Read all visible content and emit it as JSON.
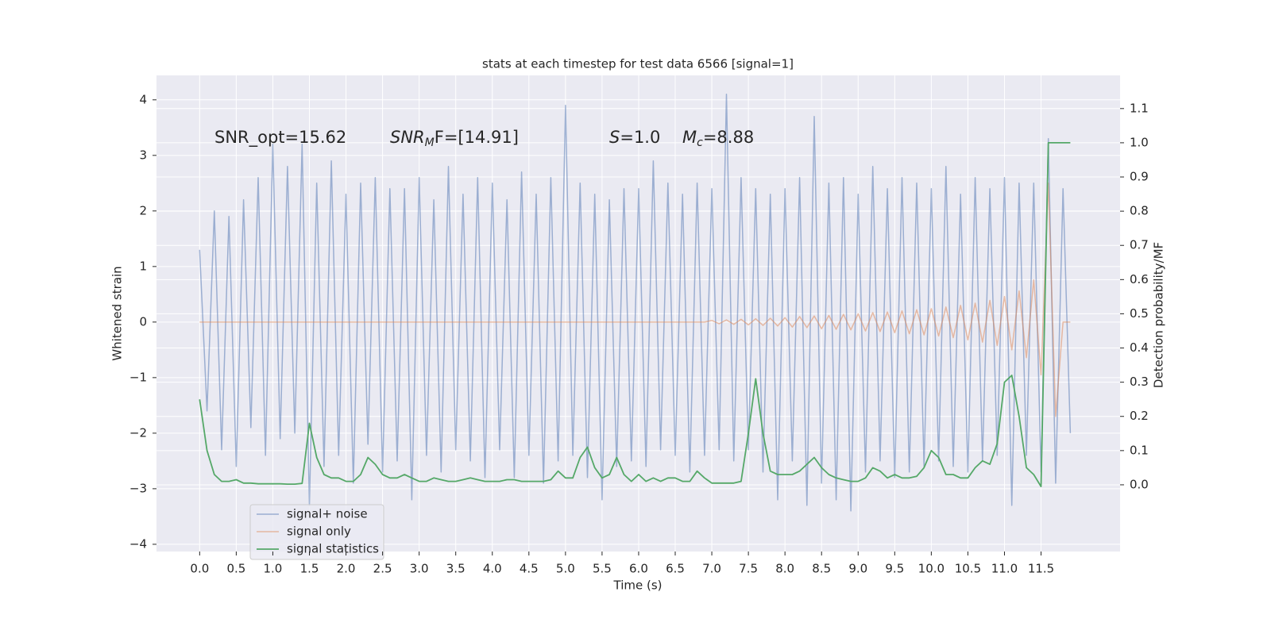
{
  "chart_data": {
    "type": "line",
    "title": "stats at each timestep for test data 6566 [signal=1]",
    "xlabel": "Time (s)",
    "ylabel": "Whitened strain",
    "y2label": "Detection probability/MF",
    "annotations": [
      {
        "text": "SNR_opt=15.62"
      },
      {
        "symbol": "SNR",
        "subscript": "M",
        "text": "F=[14.91]"
      },
      {
        "symbol": "S",
        "text": "=1.0"
      },
      {
        "symbol": "M",
        "subscript": "c",
        "text": "=8.88"
      }
    ],
    "xlim": [
      -0.59,
      12.58
    ],
    "ylim": [
      -4.13,
      4.44
    ],
    "y2lim": [
      -0.195,
      1.197
    ],
    "xticks": [
      {
        "value": 0,
        "label": "0.0"
      },
      0.5,
      {
        "value": 1,
        "label": "1.0"
      },
      1.5,
      {
        "value": 2,
        "label": "2.0"
      },
      2.5,
      {
        "value": 3,
        "label": "3.0"
      },
      3.5,
      {
        "value": 4,
        "label": "4.0"
      },
      4.5,
      {
        "value": 5,
        "label": "5.0"
      },
      5.5,
      {
        "value": 6,
        "label": "6.0"
      },
      6.5,
      {
        "value": 7,
        "label": "7.0"
      },
      7.5,
      {
        "value": 8,
        "label": "8.0"
      },
      8.5,
      {
        "value": 9,
        "label": "9.0"
      },
      9.5,
      {
        "value": 10,
        "label": "10.0"
      },
      10.5,
      {
        "value": 11,
        "label": "11.0"
      },
      11.5
    ],
    "yticks": [
      {
        "value": -4,
        "label": "−4"
      },
      {
        "value": -3,
        "label": "−3"
      },
      {
        "value": -2,
        "label": "−2"
      },
      {
        "value": -1,
        "label": "−1"
      },
      0,
      1,
      2,
      3,
      4
    ],
    "y2ticks": [
      {
        "value": 0,
        "label": "0.0"
      },
      0.1,
      0.2,
      0.3,
      0.4,
      0.5,
      0.6,
      0.7,
      0.8,
      0.9,
      {
        "value": 1,
        "label": "1.0"
      },
      1.1
    ],
    "grid": true,
    "legend": "lower left",
    "x": [
      0.0,
      0.1,
      0.2,
      0.3,
      0.4,
      0.5,
      0.6,
      0.7,
      0.8,
      0.9,
      1.0,
      1.1,
      1.2,
      1.3,
      1.4,
      1.5,
      1.6,
      1.7,
      1.8,
      1.9,
      2.0,
      2.1,
      2.2,
      2.3,
      2.4,
      2.5,
      2.6,
      2.7,
      2.8,
      2.9,
      3.0,
      3.1,
      3.2,
      3.3,
      3.4,
      3.5,
      3.6,
      3.7,
      3.8,
      3.9,
      4.0,
      4.1,
      4.2,
      4.3,
      4.4,
      4.5,
      4.6,
      4.7,
      4.8,
      4.9,
      5.0,
      5.1,
      5.2,
      5.3,
      5.4,
      5.5,
      5.6,
      5.7,
      5.8,
      5.9,
      6.0,
      6.1,
      6.2,
      6.3,
      6.4,
      6.5,
      6.6,
      6.7,
      6.8,
      6.9,
      7.0,
      7.1,
      7.2,
      7.3,
      7.4,
      7.5,
      7.6,
      7.7,
      7.8,
      7.9,
      8.0,
      8.1,
      8.2,
      8.3,
      8.4,
      8.5,
      8.6,
      8.7,
      8.8,
      8.9,
      9.0,
      9.1,
      9.2,
      9.3,
      9.4,
      9.5,
      9.6,
      9.7,
      9.8,
      9.9,
      10.0,
      10.1,
      10.2,
      10.3,
      10.4,
      10.5,
      10.6,
      10.7,
      10.8,
      10.9,
      11.0,
      11.1,
      11.2,
      11.3,
      11.4,
      11.5,
      11.6,
      11.7,
      11.8,
      11.9
    ],
    "series": [
      {
        "name": "signal+ noise",
        "color": "#4c72b0",
        "values": [
          1.3,
          -1.6,
          2.0,
          -2.3,
          1.9,
          -2.6,
          2.2,
          -1.9,
          2.6,
          -2.4,
          3.2,
          -2.1,
          2.8,
          -2.0,
          3.2,
          -3.3,
          2.5,
          -2.6,
          2.9,
          -2.4,
          2.3,
          -2.9,
          2.5,
          -2.2,
          2.6,
          -2.7,
          2.4,
          -2.5,
          2.4,
          -3.2,
          2.6,
          -2.4,
          2.2,
          -2.7,
          2.8,
          -2.3,
          2.3,
          -2.5,
          2.6,
          -2.8,
          2.5,
          -2.3,
          2.2,
          -2.8,
          2.7,
          -2.4,
          2.3,
          -2.9,
          2.6,
          -2.5,
          3.9,
          -2.4,
          2.5,
          -2.8,
          2.3,
          -3.2,
          2.2,
          -2.6,
          2.4,
          -2.5,
          2.4,
          -2.6,
          2.9,
          -2.3,
          2.5,
          -2.4,
          2.3,
          -2.7,
          2.5,
          -2.4,
          2.4,
          -2.3,
          4.1,
          -2.5,
          2.6,
          -2.3,
          2.4,
          -2.7,
          2.3,
          -3.2,
          2.4,
          -2.5,
          2.6,
          -3.3,
          3.7,
          -2.9,
          2.5,
          -3.2,
          2.6,
          -3.4,
          2.3,
          -2.7,
          2.8,
          -2.5,
          2.4,
          -2.8,
          2.6,
          -2.7,
          2.5,
          -2.6,
          2.4,
          -2.5,
          2.8,
          -2.6,
          2.3,
          -2.7,
          2.6,
          -2.5,
          2.4,
          -2.4,
          2.6,
          -3.3,
          2.5,
          -2.4,
          2.5,
          -2.7,
          3.3,
          -2.9,
          2.4,
          -2.0
        ]
      },
      {
        "name": "signal only",
        "color": "#dd8452",
        "values": [
          0,
          0,
          0,
          0,
          0,
          0,
          0,
          0,
          0,
          0,
          0,
          0,
          0,
          0,
          0,
          0,
          0,
          0,
          0,
          0,
          0,
          0,
          0,
          0,
          0,
          0,
          0,
          0,
          0,
          0,
          0,
          0,
          0,
          0,
          0,
          0,
          0,
          0,
          0,
          0,
          0,
          0,
          0,
          0,
          0,
          0,
          0,
          0,
          0,
          0,
          0,
          0,
          0,
          0,
          0,
          0,
          0,
          0,
          0,
          0,
          0,
          0,
          0,
          0,
          0,
          0,
          0,
          0,
          0,
          0,
          0.03,
          -0.03,
          0.04,
          -0.04,
          0.05,
          -0.05,
          0.06,
          -0.06,
          0.07,
          -0.07,
          0.08,
          -0.09,
          0.1,
          -0.1,
          0.11,
          -0.12,
          0.12,
          -0.13,
          0.14,
          -0.14,
          0.15,
          -0.16,
          0.17,
          -0.17,
          0.18,
          -0.19,
          0.2,
          -0.21,
          0.22,
          -0.23,
          0.24,
          -0.25,
          0.27,
          -0.28,
          0.3,
          -0.32,
          0.34,
          -0.36,
          0.39,
          -0.42,
          0.46,
          -0.5,
          0.56,
          -0.64,
          0.76,
          -0.95,
          2.5,
          -1.7,
          0,
          0
        ]
      },
      {
        "name": "signal statistics",
        "color": "#55a868",
        "axis": "y2",
        "values": [
          0.25,
          0.1,
          0.03,
          0.01,
          0.01,
          0.015,
          0.005,
          0.005,
          0.003,
          0.003,
          0.003,
          0.003,
          0.002,
          0.002,
          0.004,
          0.18,
          0.08,
          0.03,
          0.02,
          0.02,
          0.01,
          0.01,
          0.03,
          0.08,
          0.06,
          0.03,
          0.02,
          0.02,
          0.03,
          0.02,
          0.01,
          0.01,
          0.02,
          0.015,
          0.01,
          0.01,
          0.015,
          0.02,
          0.015,
          0.01,
          0.01,
          0.01,
          0.015,
          0.015,
          0.01,
          0.01,
          0.01,
          0.01,
          0.015,
          0.04,
          0.02,
          0.02,
          0.08,
          0.11,
          0.05,
          0.02,
          0.03,
          0.08,
          0.03,
          0.01,
          0.03,
          0.01,
          0.02,
          0.01,
          0.02,
          0.02,
          0.01,
          0.01,
          0.04,
          0.02,
          0.005,
          0.005,
          0.005,
          0.005,
          0.01,
          0.15,
          0.31,
          0.15,
          0.04,
          0.03,
          0.03,
          0.03,
          0.04,
          0.06,
          0.08,
          0.05,
          0.03,
          0.02,
          0.015,
          0.01,
          0.01,
          0.02,
          0.05,
          0.04,
          0.02,
          0.03,
          0.02,
          0.02,
          0.025,
          0.05,
          0.1,
          0.08,
          0.03,
          0.03,
          0.02,
          0.02,
          0.05,
          0.07,
          0.06,
          0.12,
          0.3,
          0.32,
          0.2,
          0.05,
          0.03,
          -0.005,
          1.0,
          1.0,
          1.0,
          1.0
        ]
      }
    ]
  }
}
